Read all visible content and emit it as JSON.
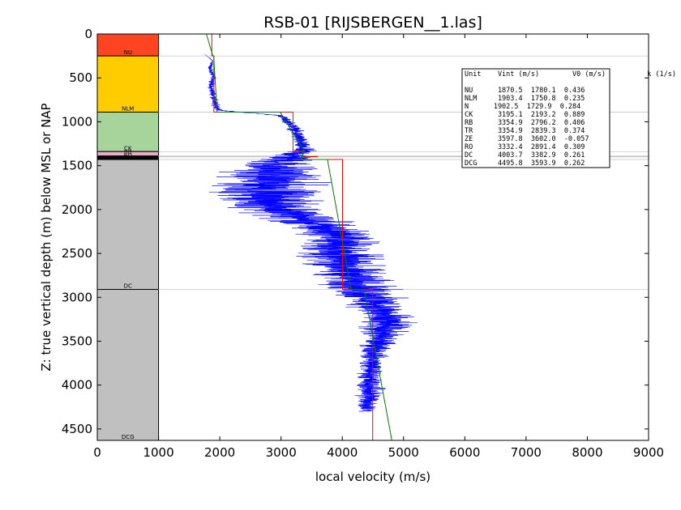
{
  "chart_data": {
    "type": "line",
    "title": "RSB-01 [RIJSBERGEN__1.las]",
    "xlabel": "local velocity (m/s)",
    "ylabel": "Z: true vertical depth (m) below MSL or NAP",
    "xlim": [
      0,
      9000
    ],
    "ylim": [
      4630,
      0
    ],
    "xticks": [
      0,
      1000,
      2000,
      3000,
      4000,
      5000,
      6000,
      7000,
      8000,
      9000
    ],
    "yticks": [
      0,
      500,
      1000,
      1500,
      2000,
      2500,
      3000,
      3500,
      4000,
      4500
    ],
    "grid": false,
    "units": [
      {
        "name": "NU",
        "top": 0,
        "base": 250,
        "color": "#ff4422"
      },
      {
        "name": "NLM",
        "top": 250,
        "base": 890,
        "color": "#ffcc00"
      },
      {
        "name": "N",
        "top": 890,
        "base": 890,
        "color": "#ffcc00"
      },
      {
        "name": "CK",
        "top": 890,
        "base": 1340,
        "color": "#a6d49a"
      },
      {
        "name": "RB",
        "top": 1340,
        "base": 1390,
        "color": "#eeaacc"
      },
      {
        "name": "TR",
        "top": 1390,
        "base": 1395,
        "color": "#9f6fb0"
      },
      {
        "name": "ZE",
        "top": 1395,
        "base": 1400,
        "color": "#9f6fb0"
      },
      {
        "name": "RO",
        "top": 1400,
        "base": 1430,
        "color": "#000000"
      },
      {
        "name": "DC",
        "top": 1430,
        "base": 2910,
        "color": "#c0c0c0"
      },
      {
        "name": "DCG",
        "top": 2910,
        "base": 4630,
        "color": "#c0c0c0"
      }
    ],
    "unit_labels": [
      {
        "name": "NU",
        "depth": 250
      },
      {
        "name": "NLM",
        "depth": 890
      },
      {
        "name": "CK",
        "depth": 1340
      },
      {
        "name": "RB",
        "depth": 1385
      },
      {
        "name": "RO",
        "depth": 1425
      },
      {
        "name": "DC",
        "depth": 2910
      },
      {
        "name": "DCG",
        "depth": 4630
      }
    ],
    "legend": {
      "placement": "top-right",
      "header": "Unit    Vint (m/s)        V0 (m/s)          k (1/s)",
      "rows": [
        "NU      1870.5  1780.1  0.436",
        "NLM     1903.4  1750.8  0.235",
        "N      1902.5  1729.9  0.284",
        "CK      3195.1  2193.2  0.889",
        "RB      3354.9  2796.2  0.406",
        "TR      3354.9  2839.3  0.374",
        "ZE      3597.8  3602.0  -0.057",
        "RO      3332.4  2891.4  0.309",
        "DC      4003.7  3382.9  0.261",
        "DCG     4495.8  3593.9  0.262"
      ]
    },
    "series": [
      {
        "color": "#0000ff",
        "trend": [
          [
            1750,
            230
          ],
          [
            1880,
            300
          ],
          [
            1840,
            400
          ],
          [
            1900,
            500
          ],
          [
            1850,
            600
          ],
          [
            1900,
            700
          ],
          [
            1920,
            800
          ],
          [
            2000,
            870
          ],
          [
            3000,
            930
          ],
          [
            3200,
            1050
          ],
          [
            3300,
            1200
          ],
          [
            3350,
            1330
          ],
          [
            3200,
            1380
          ],
          [
            2900,
            1500
          ],
          [
            2800,
            1700
          ],
          [
            2800,
            1900
          ],
          [
            3300,
            2100
          ],
          [
            4000,
            2300
          ],
          [
            3900,
            2500
          ],
          [
            4100,
            2700
          ],
          [
            4300,
            2900
          ],
          [
            4600,
            3100
          ],
          [
            4700,
            3300
          ],
          [
            4600,
            3500
          ],
          [
            4500,
            3700
          ],
          [
            4450,
            3900
          ],
          [
            4450,
            4100
          ],
          [
            4400,
            4300
          ]
        ],
        "range": [
          [
            1750,
            230,
            2
          ],
          [
            1900,
            400,
            40
          ],
          [
            1880,
            600,
            50
          ],
          [
            1900,
            800,
            70
          ],
          [
            2000,
            880,
            60
          ],
          [
            3200,
            1100,
            120
          ],
          [
            3300,
            1300,
            150
          ],
          [
            3000,
            1500,
            700
          ],
          [
            2950,
            1700,
            900
          ],
          [
            3200,
            1900,
            800
          ],
          [
            3700,
            2100,
            700
          ],
          [
            4000,
            2300,
            600
          ],
          [
            4000,
            2500,
            700
          ],
          [
            4100,
            2700,
            600
          ],
          [
            4350,
            2900,
            600
          ],
          [
            4650,
            3100,
            500
          ],
          [
            4700,
            3300,
            450
          ],
          [
            4550,
            3500,
            300
          ],
          [
            4500,
            3700,
            200
          ],
          [
            4450,
            3900,
            200
          ],
          [
            4450,
            4100,
            250
          ],
          [
            4400,
            4300,
            150
          ]
        ]
      },
      {
        "color": "#ff0000",
        "points": [
          [
            1870,
            0
          ],
          [
            1870,
            250
          ],
          [
            1903,
            250
          ],
          [
            1903,
            890
          ],
          [
            3195,
            890
          ],
          [
            3195,
            1340
          ],
          [
            3355,
            1340
          ],
          [
            3355,
            1395
          ],
          [
            3598,
            1395
          ],
          [
            3598,
            1400
          ],
          [
            3332,
            1400
          ],
          [
            3332,
            1430
          ],
          [
            4004,
            1430
          ],
          [
            4004,
            2910
          ],
          [
            4496,
            2910
          ],
          [
            4496,
            4630
          ]
        ]
      },
      {
        "color": "#008000",
        "points": [
          [
            1780,
            0
          ],
          [
            1888,
            250
          ],
          [
            1900,
            250
          ],
          [
            1955,
            890
          ],
          [
            2986,
            890
          ],
          [
            3386,
            1340
          ],
          [
            3340,
            1340
          ],
          [
            3356,
            1390
          ],
          [
            3370,
            1390
          ],
          [
            3375,
            1400
          ],
          [
            3330,
            1400
          ],
          [
            3335,
            1430
          ],
          [
            3757,
            1430
          ],
          [
            4143,
            2910
          ],
          [
            4356,
            2910
          ],
          [
            4808,
            4630
          ]
        ]
      }
    ]
  }
}
